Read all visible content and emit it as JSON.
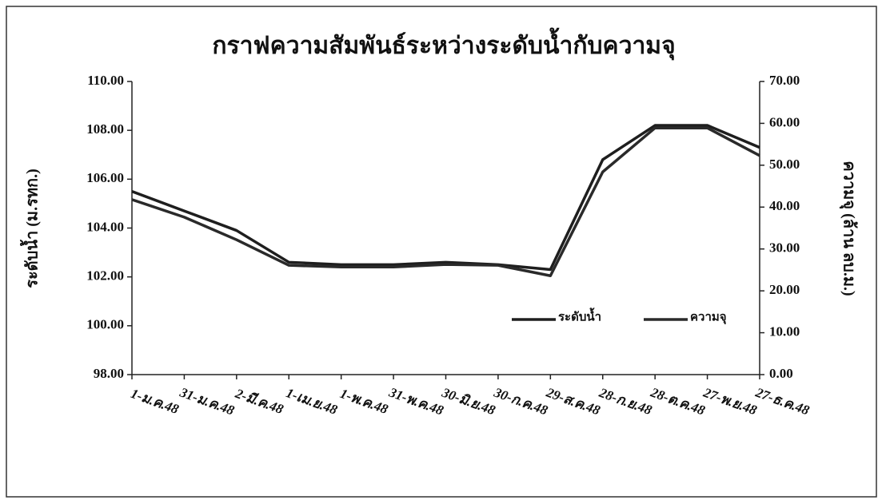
{
  "chart_data": {
    "type": "line",
    "title": "กราฟความสัมพันธ์ระหว่างระดับน้ำกับความจุ",
    "y_label": "ระดับน้ำ (ม.รทก.)",
    "y2_label": "ความจุ (ล้าน ลบ.ม.)",
    "categories": [
      "1-ม.ค.48",
      "31-ม.ค.48",
      "2-มี.ค.48",
      "1-เม.ย.48",
      "1-พ.ค.48",
      "31-พ.ค.48",
      "30-มิ.ย.48",
      "30-ก.ค.48",
      "29-ส.ค.48",
      "28-ก.ย.48",
      "28-ต.ค.48",
      "27-พ.ย.48",
      "27-ธ.ค.48"
    ],
    "series": [
      {
        "name": "ระดับน้ำ",
        "color": "#1e1e1e",
        "values": [
          105.5,
          104.7,
          103.9,
          102.6,
          102.5,
          102.5,
          102.6,
          102.5,
          102.3,
          106.8,
          108.2,
          108.2,
          107.3
        ]
      },
      {
        "name": "ความจุ",
        "color": "#2a2a2a",
        "axis": "y2",
        "values": [
          41.8,
          37.6,
          32.2,
          26.1,
          25.7,
          25.7,
          26.3,
          26.1,
          23.6,
          48.4,
          58.9,
          58.9,
          52.3
        ]
      }
    ],
    "ylim": [
      98,
      110
    ],
    "yticks": [
      {
        "value": 98,
        "label": "98.00"
      },
      {
        "value": 100,
        "label": "100.00"
      },
      {
        "value": 102,
        "label": "102.00"
      },
      {
        "value": 104,
        "label": "104.00"
      },
      {
        "value": 106,
        "label": "106.00"
      },
      {
        "value": 108,
        "label": "108.00"
      },
      {
        "value": 110,
        "label": "110.00"
      }
    ],
    "y2lim": [
      0,
      70
    ],
    "y2ticks": [
      {
        "value": 0,
        "label": "0.00"
      },
      {
        "value": 10,
        "label": "10.00"
      },
      {
        "value": 20,
        "label": "20.00"
      },
      {
        "value": 30,
        "label": "30.00"
      },
      {
        "value": 40,
        "label": "40.00"
      },
      {
        "value": 50,
        "label": "50.00"
      },
      {
        "value": 60,
        "label": "60.00"
      },
      {
        "value": 70,
        "label": "70.00"
      }
    ],
    "grid": false
  }
}
